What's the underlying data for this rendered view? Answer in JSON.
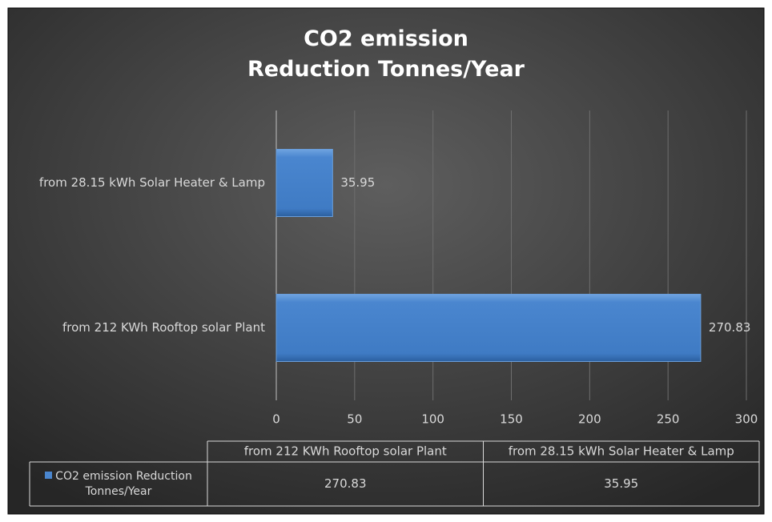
{
  "chart_data": {
    "type": "bar",
    "orientation": "horizontal",
    "title": "CO2 emission Reduction Tonnes/Year",
    "categories": [
      "from 212 KWh Rooftop solar Plant",
      "from 28.15 kWh Solar Heater & Lamp"
    ],
    "series": [
      {
        "name": "CO2 emission Reduction Tonnes/Year",
        "color": "#4a86cf",
        "values": [
          270.83,
          35.95
        ]
      }
    ],
    "xlim": [
      0,
      300
    ],
    "xticks": [
      0,
      50,
      100,
      150,
      200,
      250,
      300
    ],
    "grid": true,
    "data_table": true
  }
}
